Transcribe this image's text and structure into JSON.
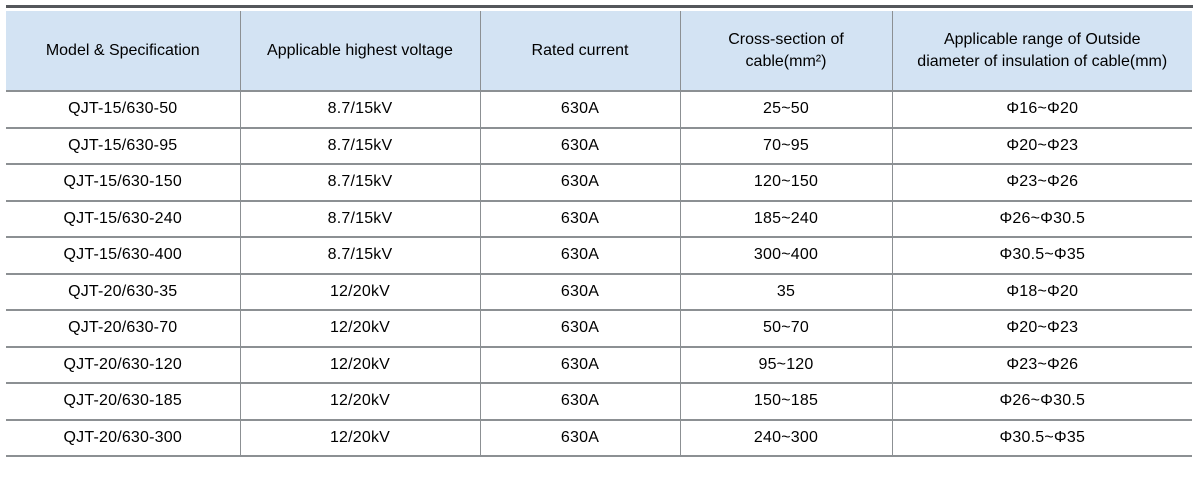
{
  "table": {
    "columns": [
      "Model & Specification",
      "Applicable highest voltage",
      "Rated current",
      "Cross-section of cable(mm²)",
      "Applicable range of Outside diameter of insulation of cable(mm)"
    ],
    "rows": [
      [
        "QJT-15/630-50",
        "8.7/15kV",
        "630A",
        "25~50",
        "Φ16~Φ20"
      ],
      [
        "QJT-15/630-95",
        "8.7/15kV",
        "630A",
        "70~95",
        "Φ20~Φ23"
      ],
      [
        "QJT-15/630-150",
        "8.7/15kV",
        "630A",
        "120~150",
        "Φ23~Φ26"
      ],
      [
        "QJT-15/630-240",
        "8.7/15kV",
        "630A",
        "185~240",
        "Φ26~Φ30.5"
      ],
      [
        "QJT-15/630-400",
        "8.7/15kV",
        "630A",
        "300~400",
        "Φ30.5~Φ35"
      ],
      [
        "QJT-20/630-35",
        "12/20kV",
        "630A",
        "35",
        "Φ18~Φ20"
      ],
      [
        "QJT-20/630-70",
        "12/20kV",
        "630A",
        "50~70",
        "Φ20~Φ23"
      ],
      [
        "QJT-20/630-120",
        "12/20kV",
        "630A",
        "95~120",
        "Φ23~Φ26"
      ],
      [
        "QJT-20/630-185",
        "12/20kV",
        "630A",
        "150~185",
        "Φ26~Φ30.5"
      ],
      [
        "QJT-20/630-300",
        "12/20kV",
        "630A",
        "240~300",
        "Φ30.5~Φ35"
      ]
    ]
  },
  "colors": {
    "header_bg": "#d3e3f3",
    "grid_line": "#8c9093",
    "top_rule": "#54575b",
    "text": "#000000"
  }
}
